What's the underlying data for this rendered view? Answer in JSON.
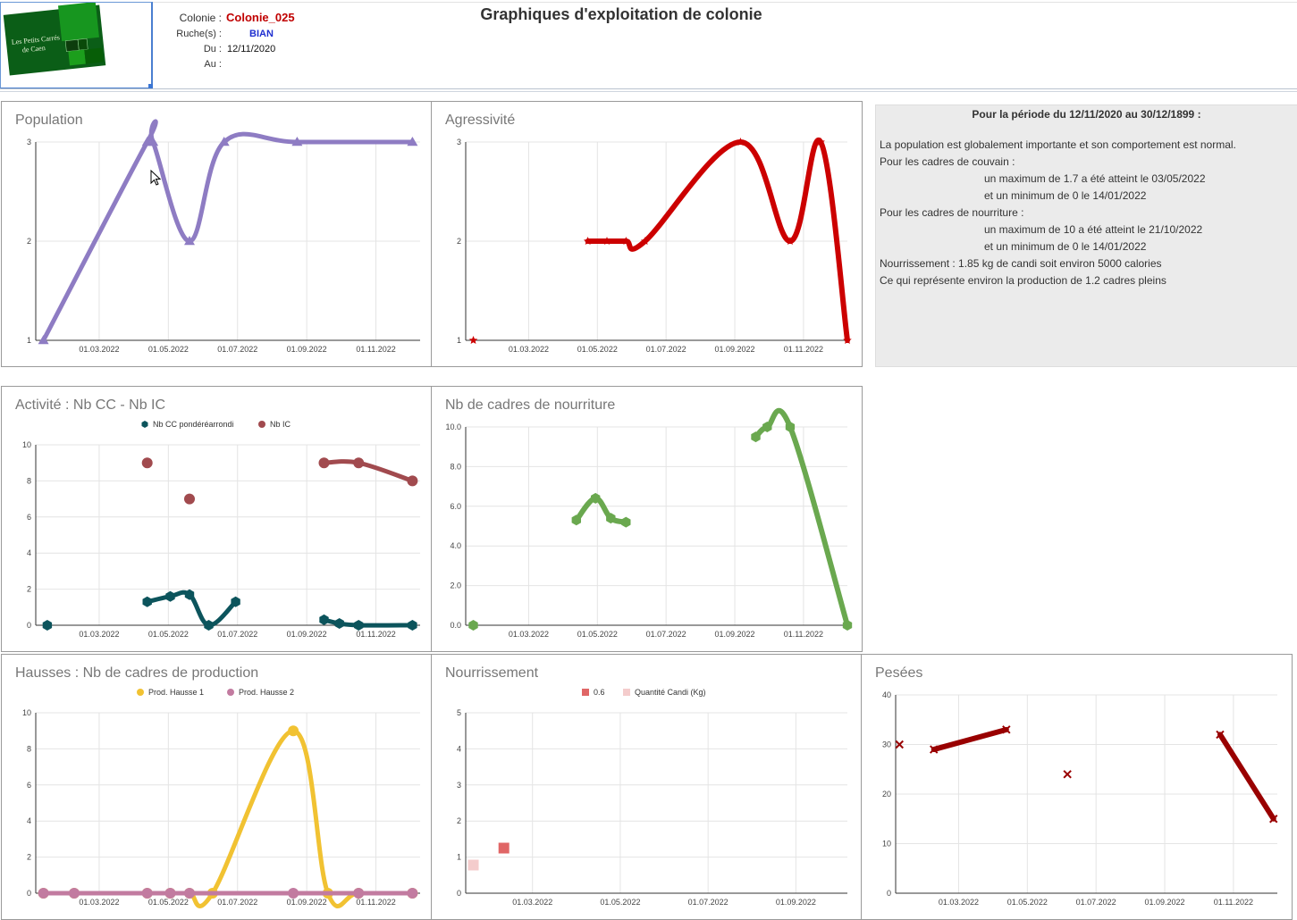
{
  "header": {
    "title": "Graphiques d'exploitation de colonie",
    "colonie_label": "Colonie :",
    "colonie_value": "Colonie_025",
    "ruches_label": "Ruche(s) :",
    "ruches_value": "BIAN",
    "du_label": "Du :",
    "du_value": "12/11/2020",
    "au_label": "Au :",
    "au_value": "",
    "logo_text_1": "Les Petits Carrés",
    "logo_text_2": "de Caen"
  },
  "summary": {
    "title": "Pour la période du 12/11/2020 au 30/12/1899 :",
    "lines": [
      "La population est globalement importante et son comportement est normal.",
      "Pour les cadres de couvain :",
      "un maximum de 1.7 a été atteint le 03/05/2022",
      "et un minimum de 0 le 14/01/2022",
      "Pour les cadres de nourriture :",
      "un maximum de 10 a été atteint le 21/10/2022",
      "et un minimum de 0 le 14/01/2022",
      "Nourrissement : 1.85 kg de candi  soit environ 5000 calories",
      "Ce qui représente environ la production de 1.2 cadres pleins"
    ]
  },
  "chart_data": [
    {
      "id": "population",
      "type": "line",
      "title": "Population",
      "x_ticks": [
        "01.03.2022",
        "01.05.2022",
        "01.07.2022",
        "01.09.2022",
        "01.11.2022"
      ],
      "y_ticks": [
        "1",
        "2",
        "3"
      ],
      "ylim": [
        1,
        3
      ],
      "color": "#8e7cc3",
      "series": [
        {
          "points": [
            [
              0.02,
              1
            ],
            [
              0.29,
              3
            ],
            [
              0.305,
              3
            ],
            [
              0.4,
              2
            ],
            [
              0.49,
              3
            ],
            [
              0.68,
              3
            ],
            [
              0.98,
              3
            ]
          ]
        }
      ]
    },
    {
      "id": "agressivite",
      "type": "line",
      "title": "Agressivité",
      "x_ticks": [
        "01.03.2022",
        "01.05.2022",
        "01.07.2022",
        "01.09.2022",
        "01.11.2022"
      ],
      "y_ticks": [
        "1",
        "2",
        "3"
      ],
      "ylim": [
        1,
        3
      ],
      "color": "#cc0000",
      "series": [
        {
          "points": [
            [
              0.02,
              1
            ]
          ]
        },
        {
          "points": [
            [
              0.32,
              2
            ],
            [
              0.37,
              2
            ],
            [
              0.42,
              2
            ],
            [
              0.47,
              2
            ],
            [
              0.72,
              3
            ],
            [
              0.85,
              2
            ],
            [
              0.93,
              3
            ],
            [
              1.0,
              1
            ]
          ]
        }
      ]
    },
    {
      "id": "activite",
      "type": "line",
      "title": "Activité : Nb CC - Nb IC",
      "legend": [
        "Nb CC pondéréarrondi",
        "Nb IC"
      ],
      "x_ticks": [
        "01.03.2022",
        "01.05.2022",
        "01.07.2022",
        "01.09.2022",
        "01.11.2022"
      ],
      "y_ticks": [
        "0",
        "2",
        "4",
        "6",
        "8",
        "10"
      ],
      "ylim": [
        0,
        10
      ],
      "series": [
        {
          "name": "Nb CC pondéréarrondi",
          "color": "#0c545c",
          "segments": [
            [
              [
                0.03,
                0
              ]
            ],
            [
              [
                0.29,
                1.3
              ],
              [
                0.35,
                1.6
              ],
              [
                0.4,
                1.7
              ],
              [
                0.45,
                0
              ],
              [
                0.52,
                1.3
              ]
            ],
            [
              [
                0.75,
                0.3
              ],
              [
                0.79,
                0.1
              ],
              [
                0.84,
                0
              ],
              [
                0.98,
                0
              ]
            ]
          ]
        },
        {
          "name": "Nb IC",
          "color": "#a14a4e",
          "segments": [
            [
              [
                0.29,
                9
              ]
            ],
            [
              [
                0.4,
                7
              ]
            ],
            [
              [
                0.75,
                9
              ],
              [
                0.84,
                9
              ],
              [
                0.98,
                8
              ]
            ]
          ]
        }
      ]
    },
    {
      "id": "nourriture",
      "type": "line",
      "title": "Nb de cadres de nourriture",
      "x_ticks": [
        "01.03.2022",
        "01.05.2022",
        "01.07.2022",
        "01.09.2022",
        "01.11.2022"
      ],
      "y_ticks": [
        "0.0",
        "2.0",
        "4.0",
        "6.0",
        "8.0",
        "10.0"
      ],
      "ylim": [
        0,
        10
      ],
      "color": "#6aa84f",
      "series": [
        {
          "points": [
            [
              0.02,
              0
            ]
          ]
        },
        {
          "points": [
            [
              0.29,
              5.3
            ],
            [
              0.34,
              6.4
            ],
            [
              0.38,
              5.4
            ],
            [
              0.42,
              5.2
            ]
          ]
        },
        {
          "points": [
            [
              0.76,
              9.5
            ],
            [
              0.79,
              10
            ],
            [
              0.85,
              10
            ],
            [
              1.0,
              0
            ]
          ]
        }
      ]
    },
    {
      "id": "hausses",
      "type": "line",
      "title": "Hausses : Nb de cadres de production",
      "legend": [
        "Prod. Hausse 1",
        "Prod. Hausse 2"
      ],
      "x_ticks": [
        "01.03.2022",
        "01.05.2022",
        "01.07.2022",
        "01.09.2022",
        "01.11.2022"
      ],
      "y_ticks": [
        "0",
        "2",
        "4",
        "6",
        "8",
        "10"
      ],
      "ylim": [
        0,
        10
      ],
      "series": [
        {
          "name": "Prod. Hausse 1",
          "color": "#f1c232",
          "points": [
            [
              0.02,
              0
            ],
            [
              0.1,
              0
            ],
            [
              0.29,
              0
            ],
            [
              0.35,
              0
            ],
            [
              0.4,
              0
            ],
            [
              0.46,
              0
            ],
            [
              0.67,
              9
            ],
            [
              0.76,
              0
            ],
            [
              0.84,
              0
            ],
            [
              0.98,
              0
            ]
          ]
        },
        {
          "name": "Prod. Hausse 2",
          "color": "#c27ba0",
          "points": [
            [
              0.02,
              0
            ],
            [
              0.1,
              0
            ],
            [
              0.29,
              0
            ],
            [
              0.35,
              0
            ],
            [
              0.4,
              0
            ],
            [
              0.67,
              0
            ],
            [
              0.84,
              0
            ],
            [
              0.98,
              0
            ]
          ]
        }
      ]
    },
    {
      "id": "nourrissement",
      "type": "scatter",
      "title": "Nourrissement",
      "legend": [
        "0.6",
        "Quantité Candi (Kg)"
      ],
      "x_ticks": [
        "01.03.2022",
        "01.05.2022",
        "01.07.2022",
        "01.09.2022"
      ],
      "y_ticks": [
        "0",
        "1",
        "2",
        "3",
        "4",
        "5"
      ],
      "ylim": [
        0,
        5
      ],
      "series": [
        {
          "name": "0.6",
          "color": "#e06666",
          "points": [
            [
              0.1,
              1.25
            ]
          ]
        },
        {
          "name": "Quantité Candi (Kg)",
          "color": "#f4cccc",
          "points": [
            [
              0.02,
              0.78
            ]
          ]
        }
      ]
    },
    {
      "id": "pesees",
      "type": "line",
      "title": "Pesées",
      "x_ticks": [
        "01.03.2022",
        "01.05.2022",
        "01.07.2022",
        "01.09.2022",
        "01.11.2022"
      ],
      "y_ticks": [
        "0",
        "10",
        "20",
        "30",
        "40"
      ],
      "ylim": [
        0,
        40
      ],
      "color": "#990000",
      "series": [
        {
          "points": [
            [
              0.01,
              30
            ]
          ]
        },
        {
          "points": [
            [
              0.1,
              29
            ],
            [
              0.29,
              33
            ]
          ]
        },
        {
          "points": [
            [
              0.45,
              24
            ]
          ]
        },
        {
          "points": [
            [
              0.85,
              32
            ],
            [
              0.99,
              15
            ]
          ]
        }
      ]
    }
  ]
}
